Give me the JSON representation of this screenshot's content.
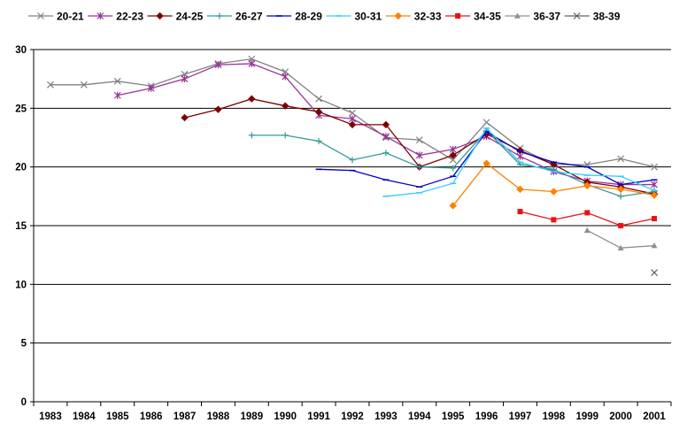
{
  "chart_data": {
    "type": "line",
    "title": "",
    "xlabel": "",
    "ylabel": "",
    "ylim": [
      0,
      30
    ],
    "y_ticks": [
      0,
      5,
      10,
      15,
      20,
      25,
      30
    ],
    "grid": "horizontal",
    "legend_position": "top",
    "categories": [
      "1983",
      "1984",
      "1985",
      "1986",
      "1987",
      "1988",
      "1989",
      "1990",
      "1991",
      "1992",
      "1993",
      "1994",
      "1995",
      "1996",
      "1997",
      "1998",
      "1999",
      "2000",
      "2001"
    ],
    "series": [
      {
        "name": "20-21",
        "color": "#808080",
        "marker": "x",
        "values": [
          27.0,
          27.0,
          27.3,
          26.9,
          27.9,
          28.8,
          29.2,
          28.1,
          25.8,
          24.6,
          22.5,
          22.3,
          20.6,
          23.8,
          21.6,
          20.2,
          20.2,
          20.7,
          20.0
        ]
      },
      {
        "name": "22-23",
        "color": "#993399",
        "marker": "asterisk",
        "values": [
          null,
          null,
          26.1,
          26.7,
          27.5,
          28.7,
          28.8,
          27.7,
          24.4,
          24.1,
          22.6,
          21.0,
          21.5,
          22.6,
          20.9,
          19.6,
          18.8,
          18.5,
          18.5
        ]
      },
      {
        "name": "24-25",
        "color": "#800000",
        "marker": "diamond",
        "values": [
          null,
          null,
          null,
          null,
          24.2,
          24.9,
          25.8,
          25.2,
          24.7,
          23.6,
          23.6,
          20.0,
          21.0,
          22.8,
          21.4,
          20.2,
          18.7,
          18.3,
          17.7
        ]
      },
      {
        "name": "26-27",
        "color": "#339999",
        "marker": "plus",
        "values": [
          null,
          null,
          null,
          null,
          null,
          null,
          22.7,
          22.7,
          22.2,
          20.6,
          21.2,
          20.0,
          19.9,
          23.1,
          20.2,
          19.8,
          18.5,
          17.5,
          17.9
        ]
      },
      {
        "name": "28-29",
        "color": "#0000cc",
        "marker": "dash",
        "values": [
          null,
          null,
          null,
          null,
          null,
          null,
          null,
          null,
          19.8,
          19.7,
          18.9,
          18.3,
          19.2,
          23.0,
          21.3,
          20.4,
          20.0,
          18.5,
          18.9
        ]
      },
      {
        "name": "30-31",
        "color": "#33ccff",
        "marker": "dash",
        "values": [
          null,
          null,
          null,
          null,
          null,
          null,
          null,
          null,
          null,
          null,
          17.5,
          17.8,
          18.6,
          23.3,
          20.4,
          19.6,
          19.3,
          19.2,
          18.0
        ]
      },
      {
        "name": "32-33",
        "color": "#ff8000",
        "marker": "diamond",
        "values": [
          null,
          null,
          null,
          null,
          null,
          null,
          null,
          null,
          null,
          null,
          null,
          null,
          16.7,
          20.3,
          18.1,
          17.9,
          18.4,
          18.1,
          17.6
        ]
      },
      {
        "name": "34-35",
        "color": "#ee1111",
        "marker": "square",
        "values": [
          null,
          null,
          null,
          null,
          null,
          null,
          null,
          null,
          null,
          null,
          null,
          null,
          null,
          null,
          16.2,
          15.5,
          16.1,
          15.0,
          15.6
        ]
      },
      {
        "name": "36-37",
        "color": "#909090",
        "marker": "triangle",
        "values": [
          null,
          null,
          null,
          null,
          null,
          null,
          null,
          null,
          null,
          null,
          null,
          null,
          null,
          null,
          null,
          null,
          14.6,
          13.1,
          13.3
        ]
      },
      {
        "name": "38-39",
        "color": "#606060",
        "marker": "x",
        "values": [
          null,
          null,
          null,
          null,
          null,
          null,
          null,
          null,
          null,
          null,
          null,
          null,
          null,
          null,
          null,
          null,
          null,
          null,
          11.0
        ]
      }
    ]
  }
}
